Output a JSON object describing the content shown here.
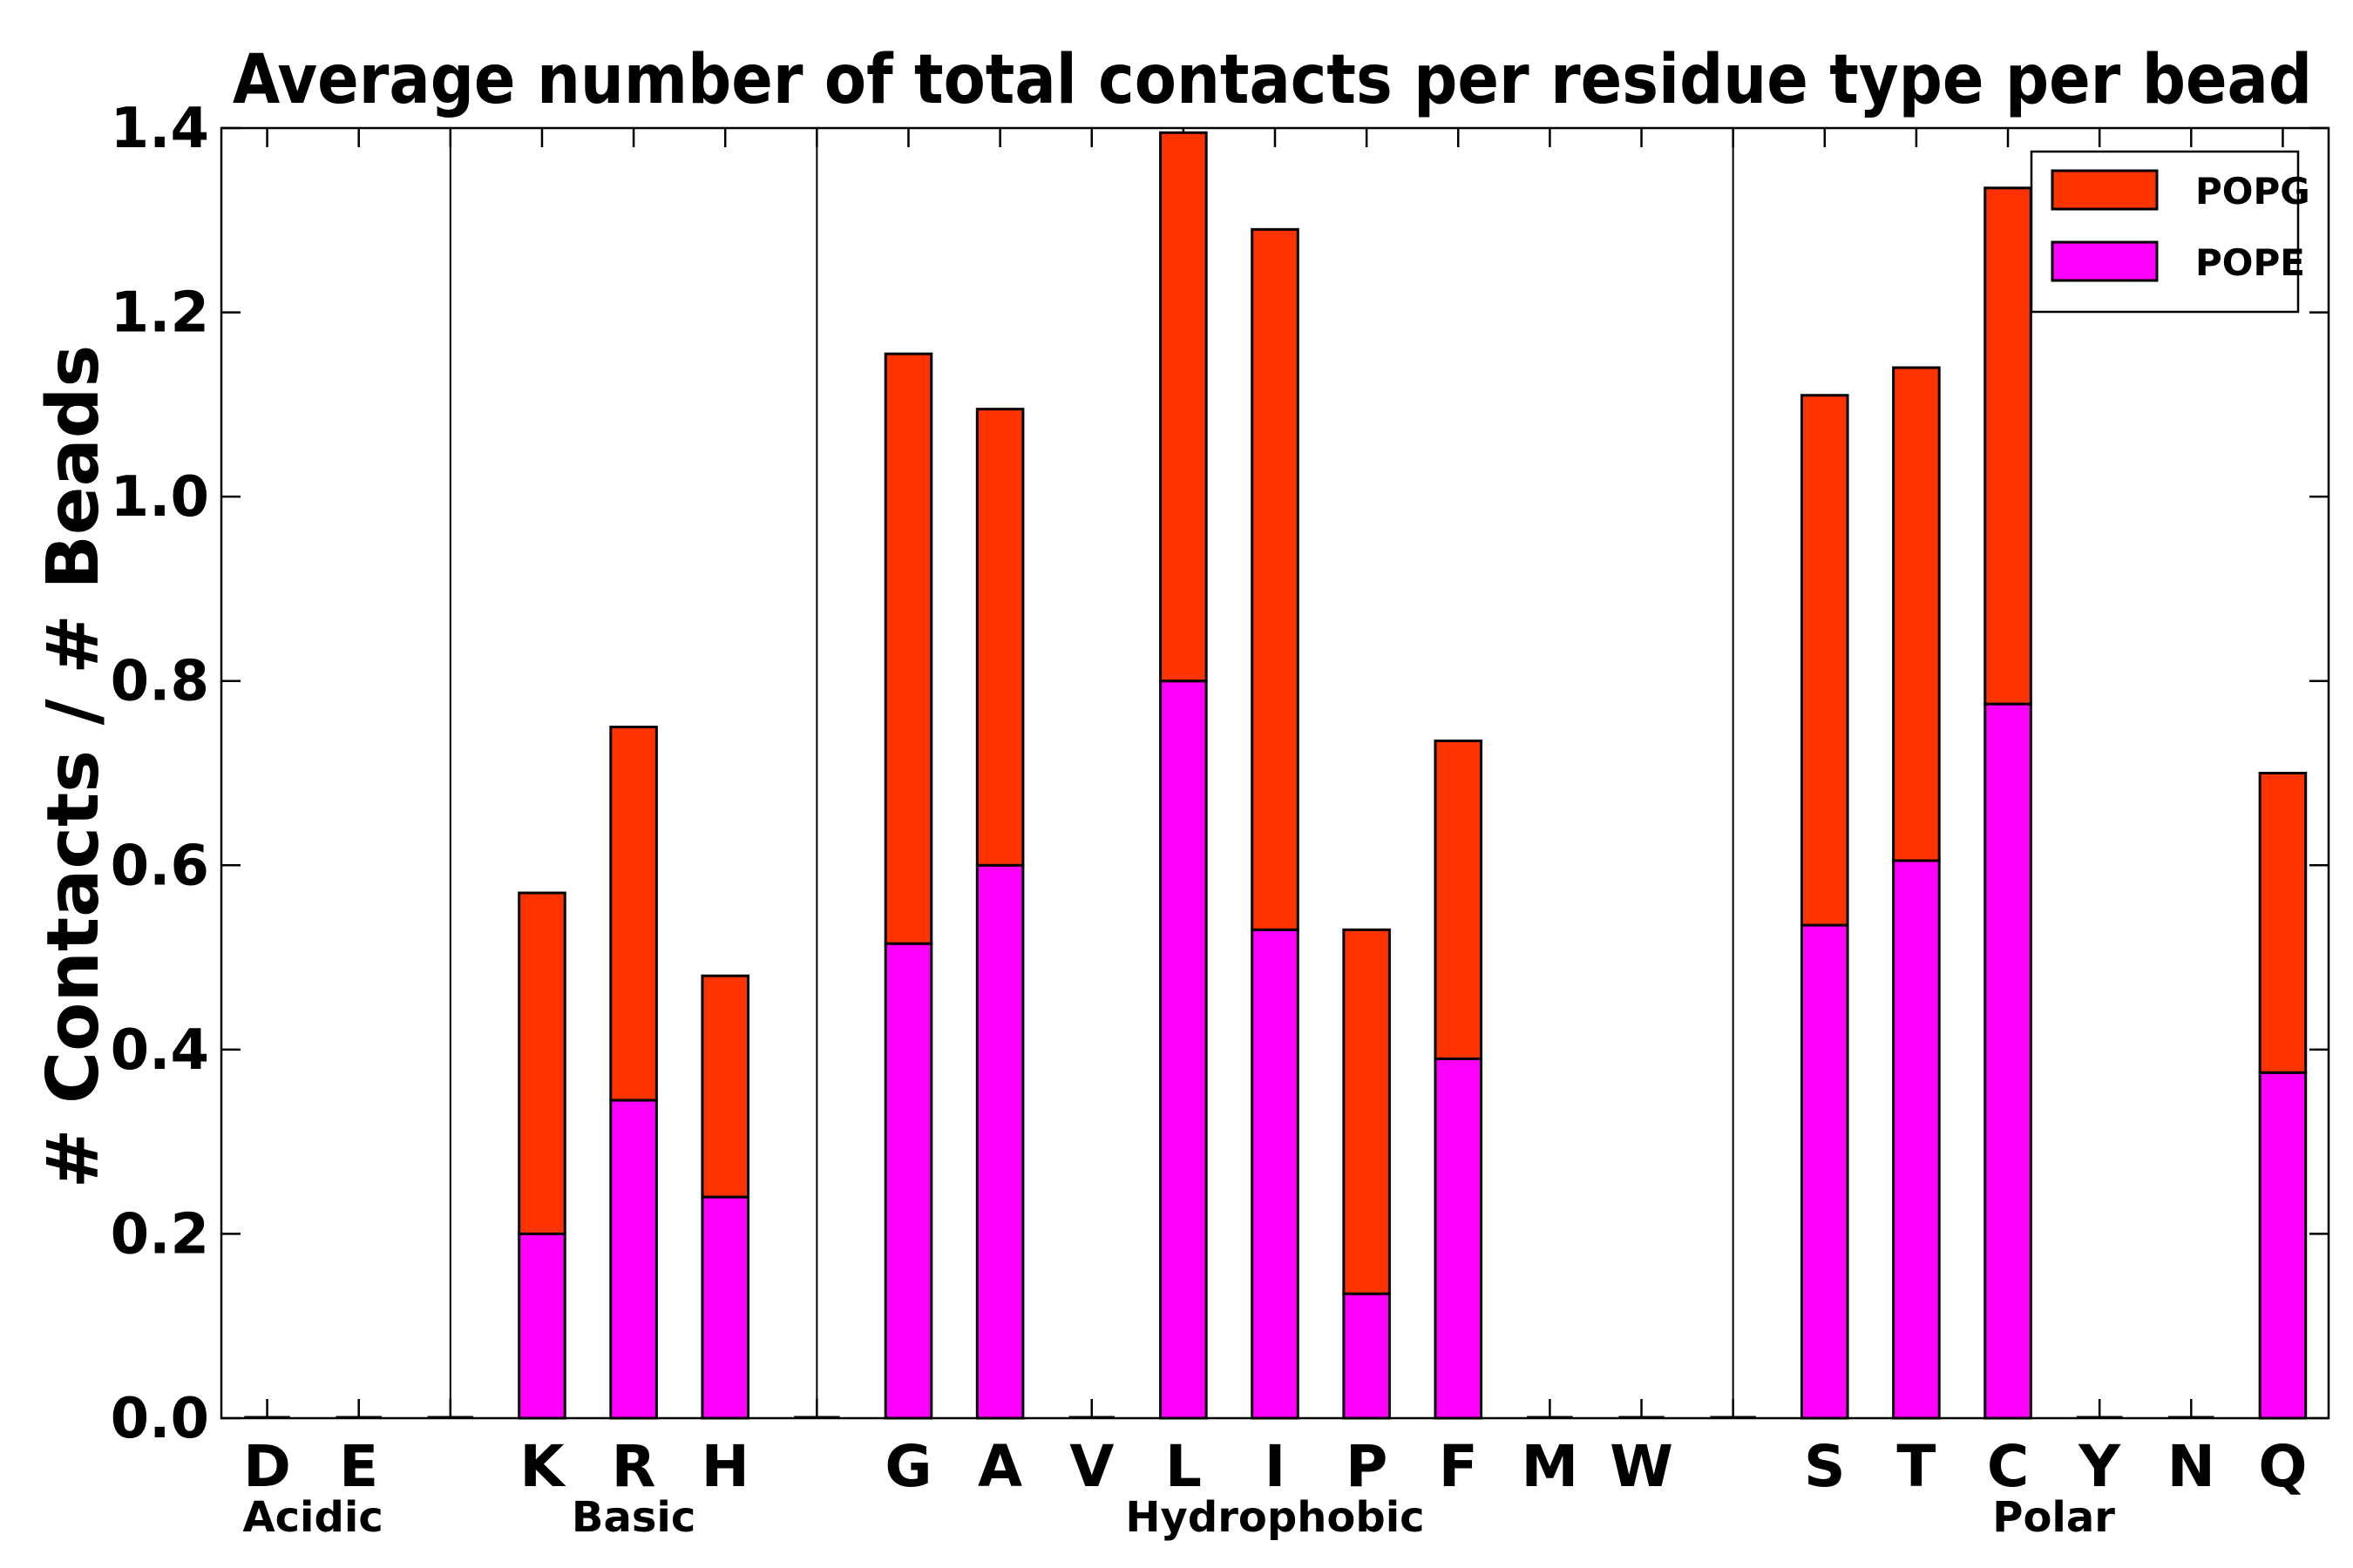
{
  "chart_data": {
    "type": "bar",
    "stacked": true,
    "title": "Average number of total contacts per residue type per bead",
    "xlabel": "",
    "ylabel": "# Contacts / # Beads",
    "ylim": [
      0,
      1.4
    ],
    "yticks": [
      "0.0",
      "0.2",
      "0.4",
      "0.6",
      "0.8",
      "1.0",
      "1.2",
      "1.4"
    ],
    "grid": false,
    "legend_position": "top-right",
    "categories": [
      "D",
      "E",
      "",
      "K",
      "R",
      "H",
      "",
      "G",
      "A",
      "V",
      "L",
      "I",
      "P",
      "F",
      "M",
      "W",
      "",
      "S",
      "T",
      "C",
      "Y",
      "N",
      "Q"
    ],
    "series": [
      {
        "name": "POPE",
        "color": "#ff00ff",
        "values": [
          0,
          0,
          0,
          0.2,
          0.345,
          0.24,
          0,
          0.515,
          0.6,
          0,
          0.8,
          0.53,
          0.135,
          0.39,
          0,
          0,
          0,
          0.535,
          0.605,
          0.775,
          0,
          0,
          0.375
        ]
      },
      {
        "name": "POPG",
        "color": "#ff3300",
        "values": [
          0,
          0,
          0,
          0.37,
          0.405,
          0.24,
          0,
          0.64,
          0.495,
          0,
          0.595,
          0.76,
          0.395,
          0.345,
          0,
          0,
          0,
          0.575,
          0.535,
          0.56,
          0,
          0,
          0.325
        ]
      }
    ],
    "groups": [
      {
        "label": "Acidic",
        "members": [
          "D",
          "E"
        ]
      },
      {
        "label": "Basic",
        "members": [
          "K",
          "R",
          "H"
        ]
      },
      {
        "label": "Hydrophobic",
        "members": [
          "G",
          "A",
          "V",
          "L",
          "I",
          "P",
          "F",
          "M",
          "W"
        ]
      },
      {
        "label": "Polar",
        "members": [
          "S",
          "T",
          "C",
          "Y",
          "N",
          "Q"
        ]
      }
    ],
    "legend": [
      "POPG",
      "POPE"
    ]
  }
}
